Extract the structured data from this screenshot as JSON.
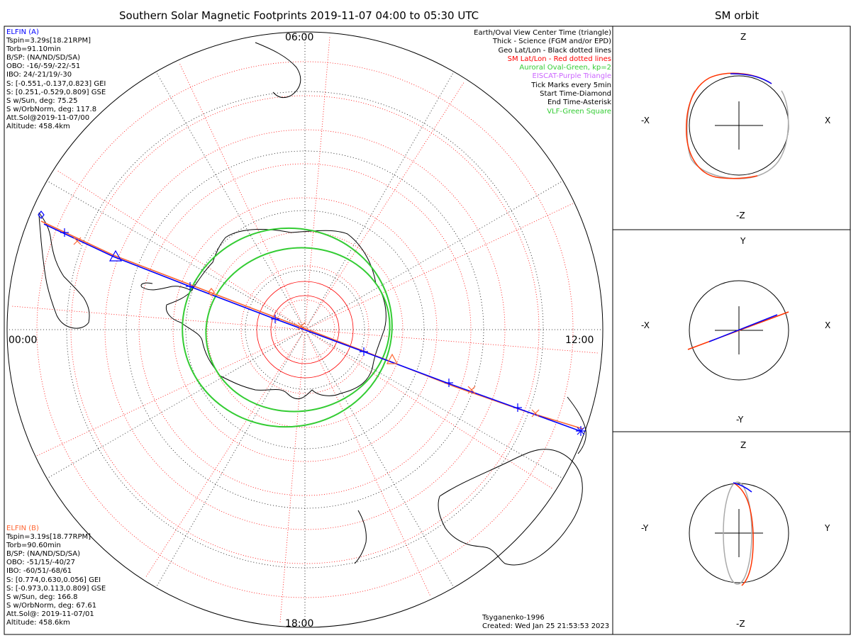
{
  "titles": {
    "main": "Southern Solar Magnetic Footprints 2019-11-07 04:00 to 05:30 UTC",
    "orbit": "SM orbit"
  },
  "map": {
    "hour_labels": {
      "top": "06:00",
      "left": "00:00",
      "right": "12:00",
      "bottom": "18:00"
    }
  },
  "elfin_a": {
    "name": "ELFIN (A)",
    "color": "#0000ff",
    "lines": [
      "Tspin=3.29s[18.21RPM]",
      "Torb=91.10min",
      "B/SP: (NA/ND/SD/SA)",
      "OBO: -16/-59/-22/-51",
      "IBO: 24/-21/19/-30",
      "S: [-0.551,-0.137,0.823] GEI",
      "S: [0.251,-0.529,0.809] GSE",
      "S w/Sun, deg: 75.25",
      "S w/OrbNorm, deg: 117.8",
      "Att.Sol@2019-11-07/00",
      "Altitude: 458.4km"
    ]
  },
  "elfin_b": {
    "name": "ELFIN (B)",
    "color": "#ff6633",
    "lines": [
      "Tspin=3.19s[18.77RPM]",
      "Torb=90.60min",
      "B/SP: (NA/ND/SD/SA)",
      "OBO: -51/15/-40/27",
      "IBO: -60/51/-68/61",
      "S: [0.774,0.630,0.056] GEI",
      "S: [-0.973,0.113,0.809] GSE",
      "S w/Sun, deg: 166.8",
      "S w/OrbNorm, deg: 67.61",
      "Att.Sol@: 2019-11-07/01",
      "Altitude: 458.6km"
    ]
  },
  "legend": [
    {
      "text": "Earth/Oval View Center Time (triangle)",
      "color": "#000000"
    },
    {
      "text": "Thick - Science (FGM and/or EPD)",
      "color": "#000000"
    },
    {
      "text": "Geo Lat/Lon - Black dotted lines",
      "color": "#000000"
    },
    {
      "text": "SM Lat/Lon - Red dotted lines",
      "color": "#ff0000"
    },
    {
      "text": "Auroral Oval-Green, kp=2",
      "color": "#33cc33"
    },
    {
      "text": "EISCAT-Purple Triangle",
      "color": "#cc66ff"
    },
    {
      "text": "Tick Marks every 5min",
      "color": "#000000"
    },
    {
      "text": "Start Time-Diamond",
      "color": "#000000"
    },
    {
      "text": "End Time-Asterisk",
      "color": "#000000"
    },
    {
      "text": "VLF-Green Square",
      "color": "#33cc33"
    }
  ],
  "credits": {
    "model": "Tsyganenko-1996",
    "created": "Created: Wed Jan 25 21:53:53 2023"
  },
  "orbit_panels": [
    {
      "top": "Z",
      "bottom": "-Z",
      "left": "-X",
      "right": "X"
    },
    {
      "top": "Y",
      "bottom": "-Y",
      "left": "-X",
      "right": "X"
    },
    {
      "top": "Z",
      "bottom": "-Z",
      "left": "-Y",
      "right": "Y"
    }
  ]
}
